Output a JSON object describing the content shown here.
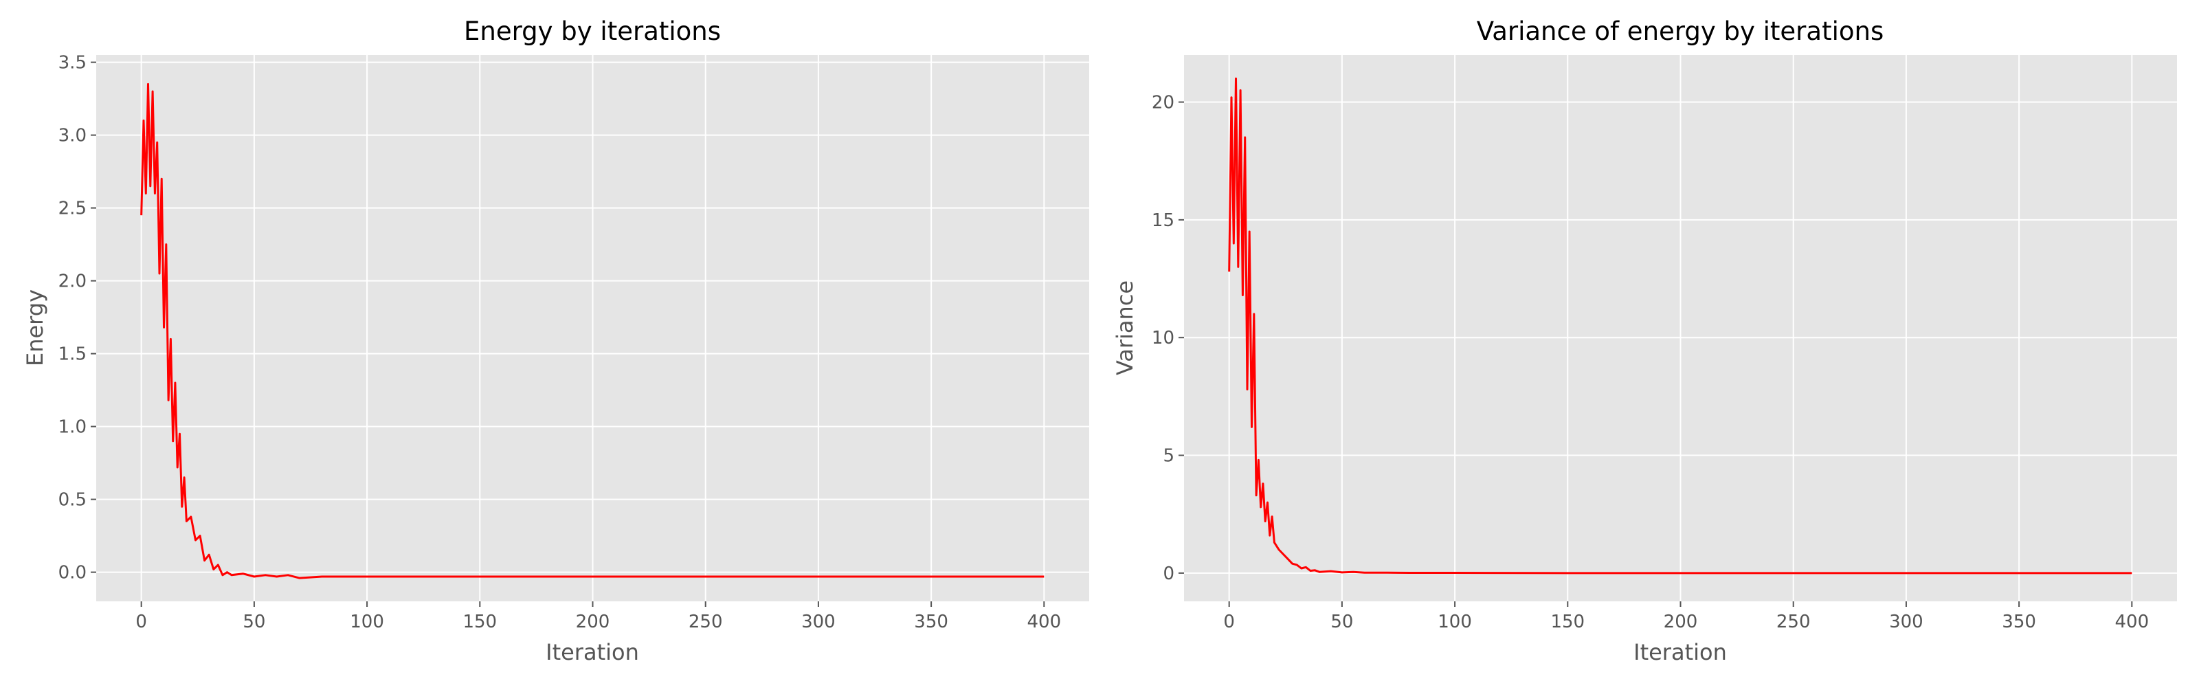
{
  "chart_data": [
    {
      "type": "line",
      "title": "Energy by iterations",
      "xlabel": "Iteration",
      "ylabel": "Energy",
      "xlim": [
        -20,
        420
      ],
      "ylim": [
        -0.2,
        3.55
      ],
      "xticks": [
        0,
        50,
        100,
        150,
        200,
        250,
        300,
        350,
        400
      ],
      "yticks": [
        0.0,
        0.5,
        1.0,
        1.5,
        2.0,
        2.5,
        3.0,
        3.5
      ],
      "ytick_labels": [
        "0.0",
        "0.5",
        "1.0",
        "1.5",
        "2.0",
        "2.5",
        "3.0",
        "3.5"
      ],
      "grid": true,
      "series": [
        {
          "color": "#ff0000",
          "x": [
            0,
            1,
            2,
            3,
            4,
            5,
            6,
            7,
            8,
            9,
            10,
            11,
            12,
            13,
            14,
            15,
            16,
            17,
            18,
            19,
            20,
            22,
            24,
            26,
            28,
            30,
            32,
            34,
            36,
            38,
            40,
            45,
            50,
            55,
            60,
            65,
            70,
            80,
            90,
            100,
            120,
            150,
            170,
            200,
            230,
            250,
            300,
            350,
            400
          ],
          "y": [
            2.45,
            3.1,
            2.6,
            3.35,
            2.65,
            3.3,
            2.6,
            2.95,
            2.05,
            2.7,
            1.68,
            2.25,
            1.18,
            1.6,
            0.9,
            1.3,
            0.72,
            0.95,
            0.45,
            0.65,
            0.35,
            0.38,
            0.22,
            0.25,
            0.08,
            0.12,
            0.02,
            0.05,
            -0.02,
            0.0,
            -0.02,
            -0.01,
            -0.03,
            -0.02,
            -0.03,
            -0.02,
            -0.04,
            -0.03,
            -0.03,
            -0.03,
            -0.03,
            -0.03,
            -0.03,
            -0.03,
            -0.03,
            -0.03,
            -0.03,
            -0.03,
            -0.03
          ]
        }
      ]
    },
    {
      "type": "line",
      "title": "Variance of energy by iterations",
      "xlabel": "Iteration",
      "ylabel": "Variance",
      "xlim": [
        -20,
        420
      ],
      "ylim": [
        -1.2,
        22
      ],
      "xticks": [
        0,
        50,
        100,
        150,
        200,
        250,
        300,
        350,
        400
      ],
      "yticks": [
        0,
        5,
        10,
        15,
        20
      ],
      "ytick_labels": [
        "0",
        "5",
        "10",
        "15",
        "20"
      ],
      "grid": true,
      "series": [
        {
          "color": "#ff0000",
          "x": [
            0,
            1,
            2,
            3,
            4,
            5,
            6,
            7,
            8,
            9,
            10,
            11,
            12,
            13,
            14,
            15,
            16,
            17,
            18,
            19,
            20,
            22,
            24,
            26,
            28,
            30,
            32,
            34,
            36,
            38,
            40,
            45,
            50,
            55,
            60,
            70,
            80,
            100,
            150,
            200,
            250,
            300,
            350,
            400
          ],
          "y": [
            12.8,
            20.2,
            14.0,
            21.0,
            13.0,
            20.5,
            11.8,
            18.5,
            7.8,
            14.5,
            6.2,
            11.0,
            3.3,
            4.8,
            2.8,
            3.8,
            2.2,
            3.0,
            1.6,
            2.4,
            1.3,
            1.0,
            0.8,
            0.6,
            0.4,
            0.35,
            0.2,
            0.25,
            0.1,
            0.12,
            0.05,
            0.08,
            0.03,
            0.05,
            0.02,
            0.02,
            0.01,
            0.01,
            0.0,
            0.0,
            0.0,
            0.0,
            0.0,
            0.0
          ]
        }
      ]
    }
  ]
}
